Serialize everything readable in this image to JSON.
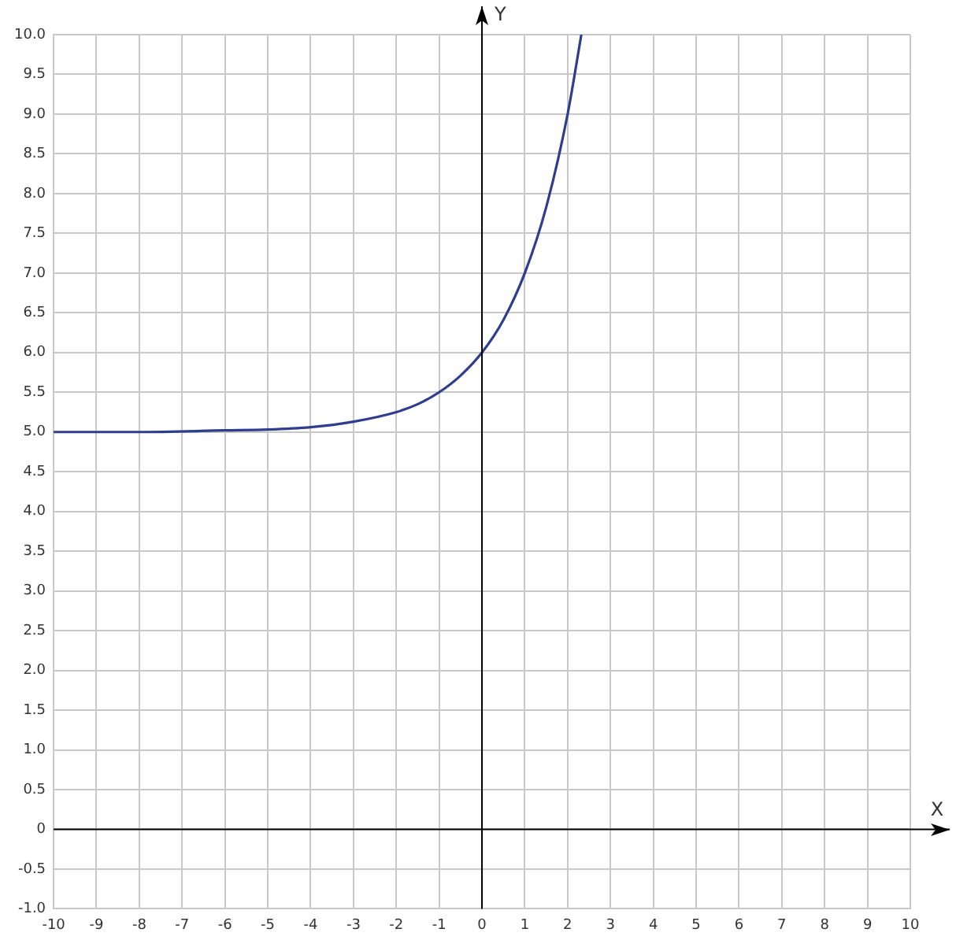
{
  "chart_data": {
    "type": "line",
    "xlabel": "X",
    "ylabel": "Y",
    "x": [
      -10,
      -8,
      -6,
      -5,
      -4,
      -3,
      -2,
      -1.5,
      -1,
      -0.5,
      0,
      0.5,
      1,
      1.5,
      2,
      2.32
    ],
    "series": [
      {
        "color": "#2f3d8f",
        "values": [
          5.0,
          5.0,
          5.02,
          5.03,
          5.06,
          5.13,
          5.25,
          5.35,
          5.5,
          5.71,
          6.0,
          6.41,
          7.0,
          7.83,
          9.0,
          10.0
        ]
      }
    ],
    "xlim": [
      -10,
      10
    ],
    "xticks": [
      -10,
      -9,
      -8,
      -7,
      -6,
      -5,
      -4,
      -3,
      -2,
      -1,
      0,
      1,
      2,
      3,
      4,
      5,
      6,
      7,
      8,
      9,
      10
    ],
    "ylim": [
      -1,
      10
    ],
    "yticks": [
      {
        "value": -1,
        "label": "-1.0"
      },
      -0.5,
      0,
      0.5,
      {
        "value": 1,
        "label": "1.0"
      },
      1.5,
      {
        "value": 2,
        "label": "2.0"
      },
      2.5,
      {
        "value": 3,
        "label": "3.0"
      },
      3.5,
      {
        "value": 4,
        "label": "4.0"
      },
      4.5,
      {
        "value": 5,
        "label": "5.0"
      },
      5.5,
      {
        "value": 6,
        "label": "6.0"
      },
      6.5,
      {
        "value": 7,
        "label": "7.0"
      },
      7.5,
      {
        "value": 8,
        "label": "8.0"
      },
      8.5,
      {
        "value": 9,
        "label": "9.0"
      },
      9.5,
      {
        "value": 10,
        "label": "10.0"
      }
    ],
    "grid": true,
    "legend": false,
    "marker": "none",
    "line_style": "solid"
  }
}
